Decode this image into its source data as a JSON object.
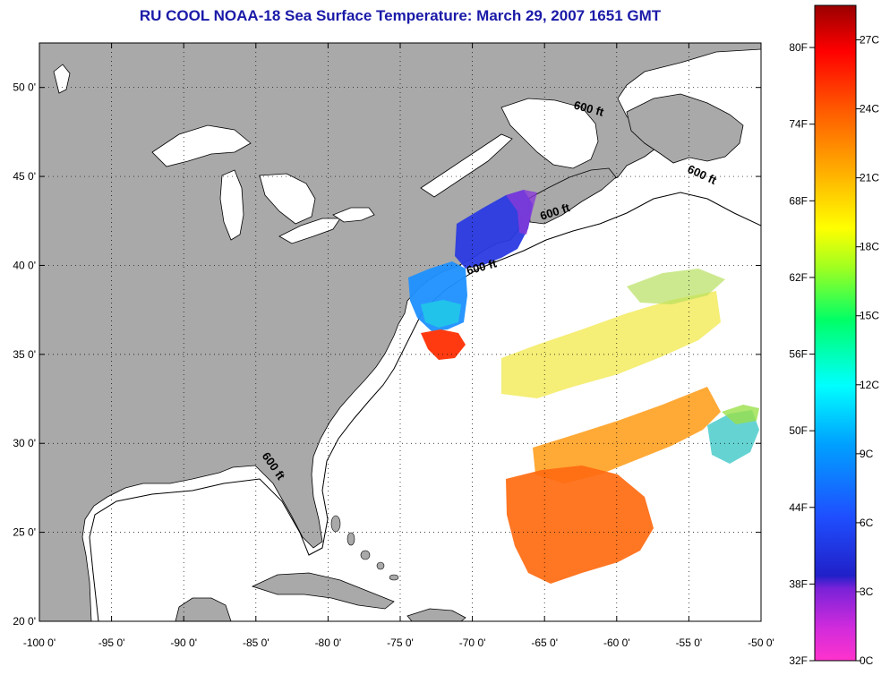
{
  "title": "RU COOL  NOAA-18  Sea Surface Temperature:  March 29, 2007 1651 GMT",
  "map": {
    "lon_range": [
      -100,
      -50
    ],
    "lat_range": [
      20,
      52.5
    ],
    "lon_ticks": [
      {
        "value": -100,
        "label": "-100 0'"
      },
      {
        "value": -95,
        "label": "-95 0'"
      },
      {
        "value": -90,
        "label": "-90 0'"
      },
      {
        "value": -85,
        "label": "-85 0'"
      },
      {
        "value": -80,
        "label": "-80 0'"
      },
      {
        "value": -75,
        "label": "-75 0'"
      },
      {
        "value": -70,
        "label": "-70 0'"
      },
      {
        "value": -65,
        "label": "-65 0'"
      },
      {
        "value": -60,
        "label": "-60 0'"
      },
      {
        "value": -55,
        "label": "-55 0'"
      },
      {
        "value": -50,
        "label": "-50 0'"
      }
    ],
    "lat_ticks": [
      {
        "value": 20,
        "label": "20 0'"
      },
      {
        "value": 25,
        "label": "25 0'"
      },
      {
        "value": 30,
        "label": "30 0'"
      },
      {
        "value": 35,
        "label": "35 0'"
      },
      {
        "value": 40,
        "label": "40 0'"
      },
      {
        "value": 45,
        "label": "45 0'"
      },
      {
        "value": 50,
        "label": "50 0'"
      }
    ],
    "grid": "dotted",
    "land_color": "#a9a9a9",
    "contour_labels": [
      {
        "text": "600 ft",
        "lon": -62.0,
        "lat": 48.6,
        "angle": 15
      },
      {
        "text": "600 ft",
        "lon": -54.2,
        "lat": 44.9,
        "angle": 25
      },
      {
        "text": "600 ft",
        "lon": -64.2,
        "lat": 42.8,
        "angle": -18
      },
      {
        "text": "600 ft",
        "lon": -69.3,
        "lat": 39.7,
        "angle": -15
      },
      {
        "text": "600 ft",
        "lon": -84.0,
        "lat": 28.6,
        "angle": 55
      }
    ]
  },
  "colorbar": {
    "fahrenheit_labels": [
      "80F",
      "74F",
      "68F",
      "62F",
      "56F",
      "50F",
      "44F",
      "38F",
      "32F"
    ],
    "celsius_labels": [
      "27C",
      "24C",
      "21C",
      "18C",
      "15C",
      "12C",
      "9C",
      "6C",
      "3C",
      "0C"
    ],
    "range_c": [
      0,
      28.5
    ]
  }
}
